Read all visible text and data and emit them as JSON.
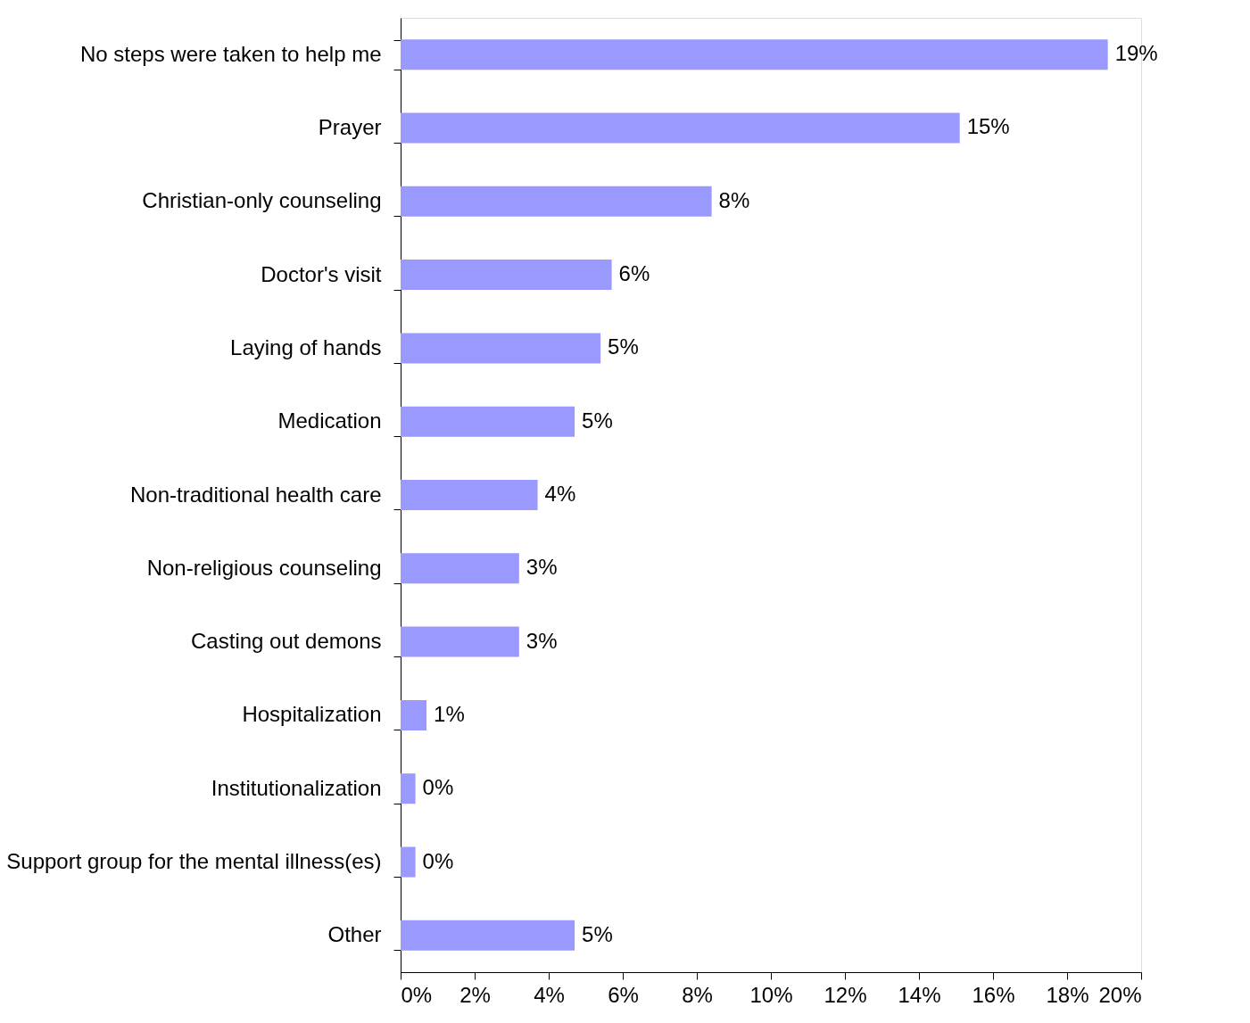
{
  "chart_data": {
    "type": "bar",
    "orientation": "horizontal",
    "categories": [
      "No steps were taken to help me",
      "Prayer",
      "Christian-only counseling",
      "Doctor's visit",
      "Laying of hands",
      "Medication",
      "Non-traditional health care",
      "Non-religious counseling",
      "Casting out demons",
      "Hospitalization",
      "Institutionalization",
      "Support group for the mental illness(es)",
      "Other"
    ],
    "values": [
      19.1,
      15.1,
      8.4,
      5.7,
      5.4,
      4.7,
      3.7,
      3.2,
      3.2,
      0.7,
      0.4,
      0.4,
      4.7
    ],
    "value_labels": [
      "19%",
      "15%",
      "8%",
      "6%",
      "5%",
      "5%",
      "4%",
      "3%",
      "3%",
      "1%",
      "0%",
      "0%",
      "5%"
    ],
    "color": "#9999ff",
    "xlim": [
      0,
      20
    ],
    "xticks": [
      {
        "value": 0,
        "label": "0%"
      },
      {
        "value": 2,
        "label": "2%"
      },
      {
        "value": 4,
        "label": "4%"
      },
      {
        "value": 6,
        "label": "6%"
      },
      {
        "value": 8,
        "label": "8%"
      },
      {
        "value": 10,
        "label": "10%"
      },
      {
        "value": 12,
        "label": "12%"
      },
      {
        "value": 14,
        "label": "14%"
      },
      {
        "value": 16,
        "label": "16%"
      },
      {
        "value": 18,
        "label": "18%"
      },
      {
        "value": 20,
        "label": "20%"
      }
    ],
    "grid": false
  }
}
